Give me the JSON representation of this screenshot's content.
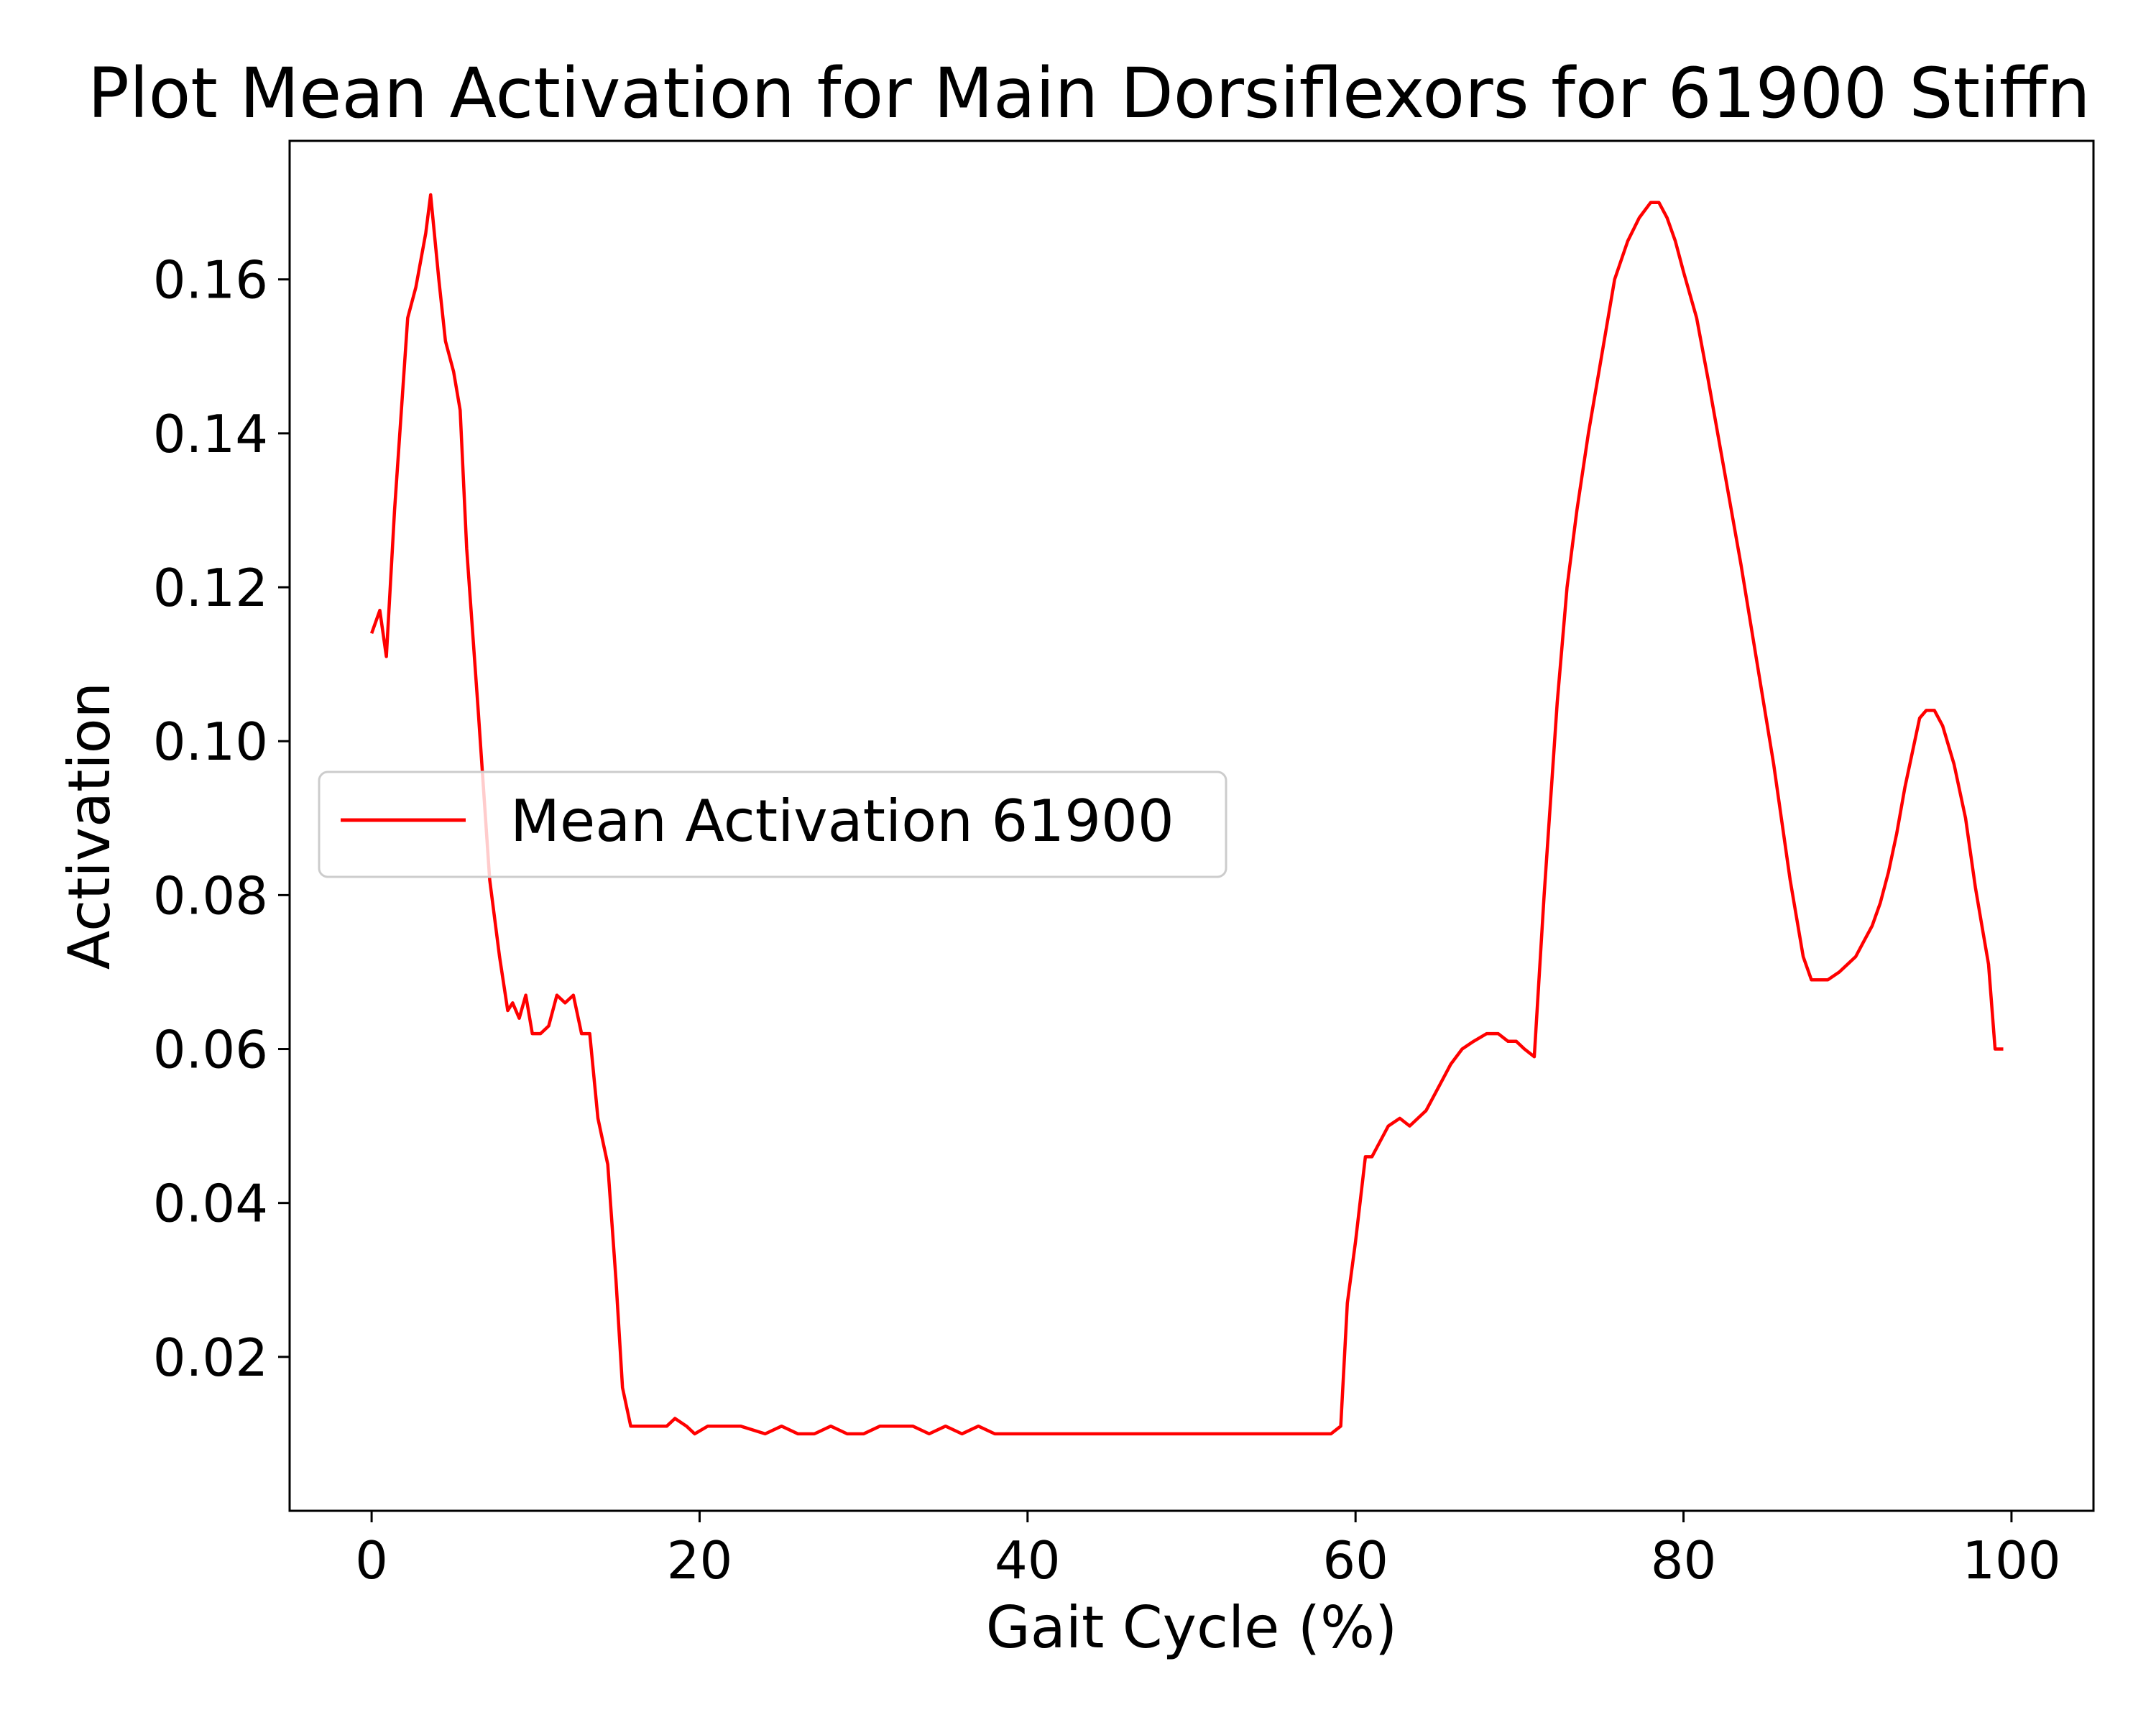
{
  "chart_data": {
    "type": "line",
    "title": "Plot Mean Activation for Main Dorsiflexors for 61900 Stiffn",
    "xlabel": "Gait Cycle (%)",
    "ylabel": "Activation",
    "xlim": [
      -5,
      105
    ],
    "ylim": [
      0.0,
      0.178
    ],
    "xticks": [
      0,
      20,
      40,
      60,
      80,
      100
    ],
    "xtick_labels": [
      "0",
      "20",
      "40",
      "60",
      "80",
      "100"
    ],
    "yticks": [
      0.02,
      0.04,
      0.06,
      0.08,
      0.1,
      0.12,
      0.14,
      0.16
    ],
    "ytick_labels": [
      "0.02",
      "0.04",
      "0.06",
      "0.08",
      "0.10",
      "0.12",
      "0.14",
      "0.16"
    ],
    "grid": false,
    "legend_position": "center-left",
    "series": [
      {
        "name": "Mean Activation 61900",
        "color": "#ff0000",
        "x": [
          0,
          0.5,
          0.9,
          1.4,
          2.2,
          2.7,
          3.3,
          3.6,
          4.1,
          4.5,
          5.0,
          5.4,
          5.8,
          6.5,
          7.2,
          7.8,
          8.3,
          8.6,
          9.0,
          9.4,
          9.8,
          10.3,
          10.8,
          11.3,
          11.8,
          12.3,
          12.8,
          13.3,
          13.8,
          14.4,
          14.9,
          15.3,
          15.8,
          16.2,
          16.6,
          17.0,
          18.0,
          18.5,
          19.2,
          19.7,
          20.5,
          21.5,
          22.5,
          24.0,
          25.0,
          26.0,
          27.0,
          28.0,
          29.0,
          30.0,
          31.0,
          32.0,
          33.0,
          34.0,
          35.0,
          36.0,
          37.0,
          38.0,
          40.0,
          42.0,
          44.0,
          46.0,
          48.0,
          50.0,
          52.0,
          54.0,
          56.0,
          57.5,
          58.5,
          59.1,
          59.5,
          60.0,
          60.6,
          61.0,
          61.5,
          62.0,
          62.7,
          63.3,
          63.8,
          64.3,
          64.8,
          65.3,
          65.8,
          66.5,
          67.2,
          68.0,
          68.7,
          69.3,
          69.8,
          70.3,
          70.9,
          71.5,
          72.3,
          72.9,
          73.5,
          74.2,
          75.0,
          75.8,
          76.6,
          77.3,
          78.0,
          78.5,
          79.0,
          79.5,
          80.0,
          80.8,
          81.5,
          82.5,
          83.5,
          84.5,
          85.5,
          86.5,
          87.3,
          87.8,
          88.3,
          88.8,
          89.5,
          90.0,
          90.5,
          91.0,
          91.5,
          92.0,
          92.5,
          93.0,
          93.5,
          94.0,
          94.4,
          94.8,
          95.3,
          95.8,
          96.5,
          97.2,
          97.8,
          98.2,
          98.6,
          99.0,
          99.5
        ],
        "y": [
          0.114,
          0.117,
          0.111,
          0.13,
          0.155,
          0.159,
          0.166,
          0.171,
          0.16,
          0.152,
          0.148,
          0.143,
          0.125,
          0.104,
          0.082,
          0.072,
          0.065,
          0.066,
          0.064,
          0.067,
          0.062,
          0.062,
          0.063,
          0.067,
          0.066,
          0.067,
          0.062,
          0.062,
          0.051,
          0.045,
          0.03,
          0.016,
          0.011,
          0.011,
          0.011,
          0.011,
          0.011,
          0.012,
          0.011,
          0.01,
          0.011,
          0.011,
          0.011,
          0.01,
          0.011,
          0.01,
          0.01,
          0.011,
          0.01,
          0.01,
          0.011,
          0.011,
          0.011,
          0.01,
          0.011,
          0.01,
          0.011,
          0.01,
          0.01,
          0.01,
          0.01,
          0.01,
          0.01,
          0.01,
          0.01,
          0.01,
          0.01,
          0.01,
          0.01,
          0.011,
          0.027,
          0.035,
          0.046,
          0.046,
          0.048,
          0.05,
          0.051,
          0.05,
          0.051,
          0.052,
          0.054,
          0.056,
          0.058,
          0.06,
          0.061,
          0.062,
          0.062,
          0.061,
          0.061,
          0.06,
          0.059,
          0.08,
          0.105,
          0.12,
          0.13,
          0.14,
          0.15,
          0.16,
          0.165,
          0.168,
          0.17,
          0.17,
          0.168,
          0.165,
          0.161,
          0.155,
          0.147,
          0.135,
          0.123,
          0.11,
          0.097,
          0.082,
          0.072,
          0.069,
          0.069,
          0.069,
          0.07,
          0.071,
          0.072,
          0.074,
          0.076,
          0.079,
          0.083,
          0.088,
          0.094,
          0.099,
          0.103,
          0.104,
          0.104,
          0.102,
          0.097,
          0.09,
          0.081,
          0.076,
          0.071,
          0.06,
          0.06
        ]
      }
    ]
  }
}
